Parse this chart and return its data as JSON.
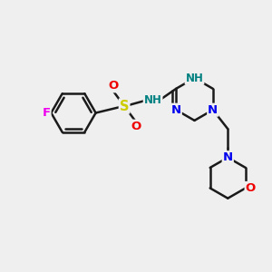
{
  "background_color": "#efefef",
  "bond_color": "#1a1a1a",
  "bond_width": 1.8,
  "atom_colors": {
    "C": "#1a1a1a",
    "N": "#0000ee",
    "O": "#ee0000",
    "F": "#ee00ee",
    "S": "#cccc00",
    "NH": "#008080"
  },
  "font_size": 8.5,
  "fig_width": 3.0,
  "fig_height": 3.0,
  "dpi": 100
}
